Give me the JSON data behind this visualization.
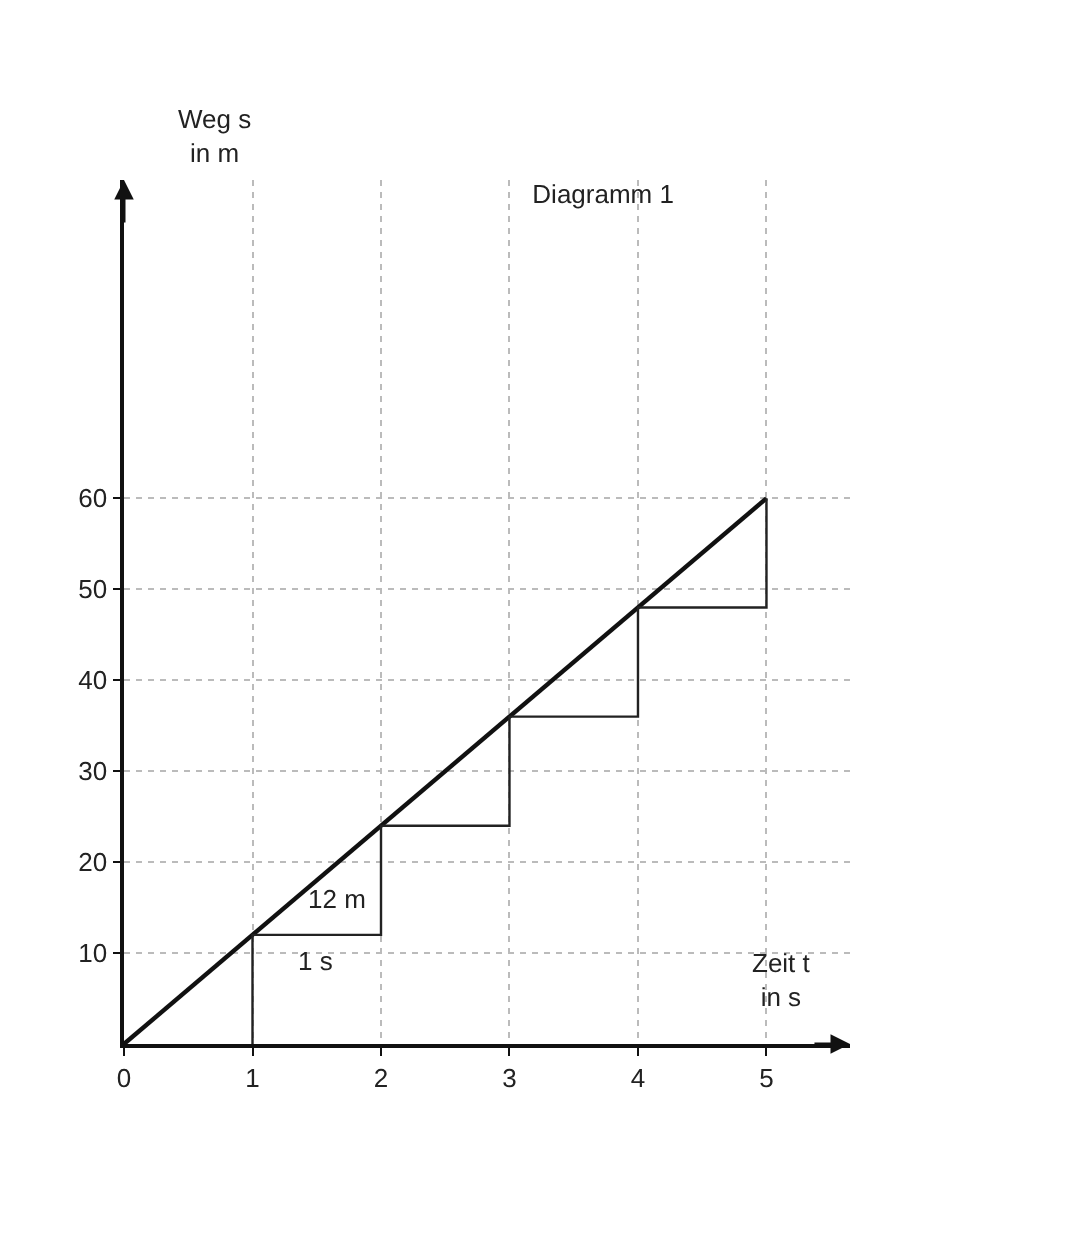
{
  "chart_data": {
    "type": "line",
    "title": "Diagramm 1",
    "xlabel": "Zeit t\nin s",
    "ylabel": "Weg s\nin m",
    "series": [
      {
        "color": "#111111",
        "x": [
          0,
          5
        ],
        "values": [
          0,
          60
        ]
      },
      {
        "type": "step",
        "color": "#222222",
        "x": [
          1,
          1,
          2,
          3,
          4,
          5
        ],
        "values": [
          0,
          12,
          24,
          36,
          48,
          60
        ]
      }
    ],
    "annotations": [
      {
        "text": "1 s",
        "x": 1.5,
        "y": 12
      },
      {
        "text": "12 m",
        "x": 2,
        "y": 16
      }
    ],
    "xlim": [
      0,
      5.65
    ],
    "ylim": [
      0,
      95
    ],
    "xticks": [
      0,
      1,
      2,
      3,
      4,
      5
    ],
    "yticks": [
      10,
      20,
      30,
      40,
      50,
      60
    ],
    "grid": true,
    "marker": "none",
    "line_style": "solid"
  }
}
